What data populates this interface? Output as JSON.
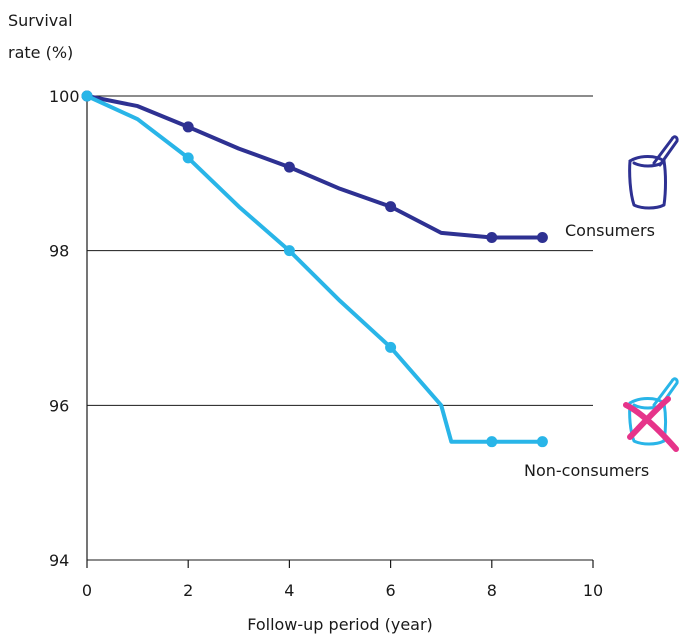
{
  "chart_data": {
    "type": "line",
    "ylabel_line1": "Survival",
    "ylabel_line2": "rate (%)",
    "xlabel": "Follow-up period (year)",
    "xlim": [
      0,
      10
    ],
    "ylim": [
      94,
      100
    ],
    "x_ticks": [
      "0",
      "2",
      "4",
      "6",
      "8",
      "10"
    ],
    "y_ticks": [
      "100",
      "98",
      "96",
      "94"
    ],
    "grid": "horizontal",
    "series": [
      {
        "name": "Consumers",
        "color": "#2e3192",
        "x": [
          0,
          1,
          2,
          3,
          4,
          5,
          6,
          7,
          8,
          9
        ],
        "y": [
          100,
          99.87,
          99.6,
          99.32,
          99.08,
          98.8,
          98.57,
          98.23,
          98.17,
          98.17
        ],
        "marked_x": [
          0,
          2,
          4,
          6,
          8,
          9
        ],
        "icon": "yogurt-cup-icon"
      },
      {
        "name": "Non-consumers",
        "color": "#29b5e8",
        "x": [
          0,
          1,
          2,
          3,
          4,
          5,
          6,
          7,
          7.2,
          8,
          9
        ],
        "y": [
          100,
          99.7,
          99.2,
          98.57,
          98,
          97.35,
          96.75,
          96,
          95.53,
          95.53,
          95.53
        ],
        "marked_x": [
          0,
          2,
          4,
          6,
          8,
          9
        ],
        "icon": "crossed-yogurt-cup-icon",
        "cross_color": "#e6348a"
      }
    ]
  }
}
